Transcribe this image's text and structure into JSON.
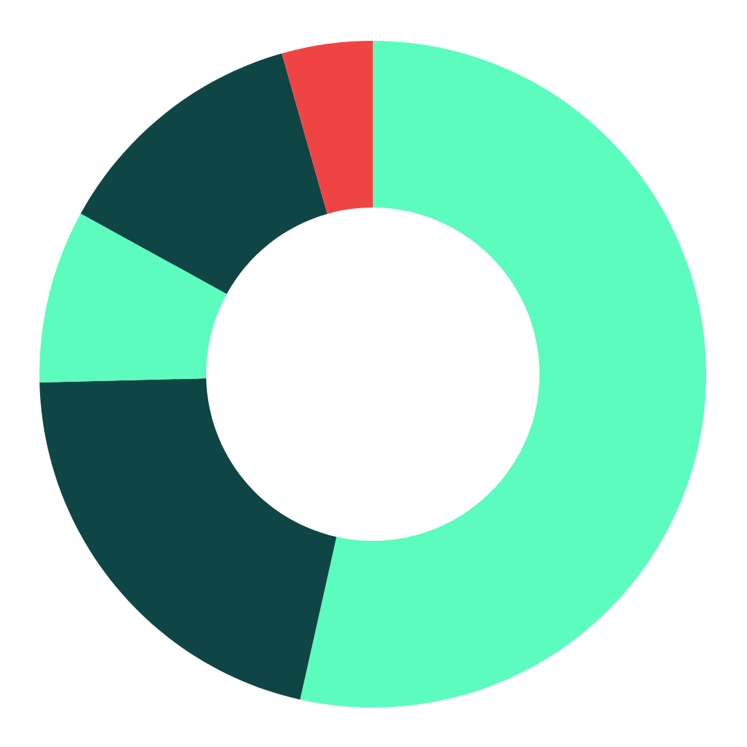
{
  "chart_data": {
    "type": "donut",
    "categories": [
      null,
      null,
      null,
      null,
      null
    ],
    "values": [
      53.5,
      21.1,
      8.4,
      12.6,
      4.4
    ],
    "colors": [
      "#5cfcbe",
      "#0f4545",
      "#5cfcbe",
      "#0f4545",
      "#f04444"
    ]
  }
}
